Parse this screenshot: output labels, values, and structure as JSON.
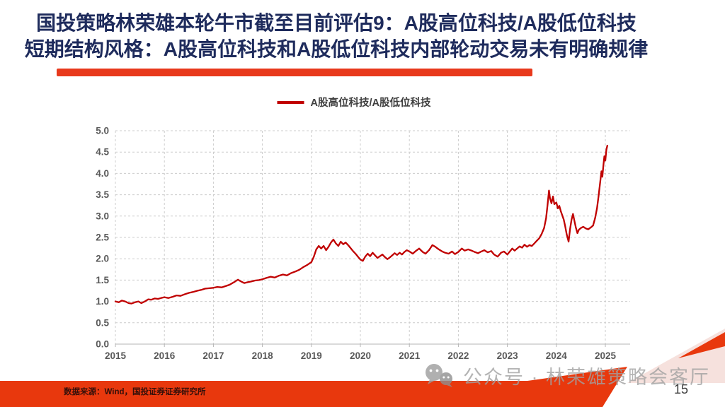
{
  "header": {
    "title_line1": "国投策略林荣雄本轮牛市截至目前评估9：A股高位科技/A股低位科技",
    "title_line2": "短期结构风格：A股高位科技和A股低位科技内部轮动交易未有明确规律",
    "title_color": "#1e2b5c",
    "underline_color": "#e8391c"
  },
  "footer": {
    "source": "数据来源：Wind，国投证券证券研究所",
    "watermark": "公众号 · 林荣雄策略会客厅",
    "wechat_icon": "wechat-icon",
    "page_number": "15",
    "band_color": "#e8380d",
    "shadow_color": "#f6e1dd"
  },
  "chart_data": {
    "type": "line",
    "title": "",
    "xlabel": "",
    "ylabel": "",
    "xlim": [
      2015,
      2025.5
    ],
    "ylim": [
      0,
      5
    ],
    "x_ticks": [
      2015,
      2016,
      2017,
      2018,
      2019,
      2020,
      2021,
      2022,
      2023,
      2024,
      2025
    ],
    "y_ticks": [
      0,
      0.5,
      1,
      1.5,
      2,
      2.5,
      3,
      3.5,
      4,
      4.5,
      5
    ],
    "grid": "dashed",
    "legend_position": "top-center",
    "series": [
      {
        "name": "A股高位科技/A股低位科技",
        "color": "#c00000",
        "points": [
          [
            2015.0,
            1.0
          ],
          [
            2015.07,
            0.98
          ],
          [
            2015.13,
            1.02
          ],
          [
            2015.2,
            1.0
          ],
          [
            2015.27,
            0.96
          ],
          [
            2015.33,
            0.95
          ],
          [
            2015.4,
            0.98
          ],
          [
            2015.47,
            1.0
          ],
          [
            2015.53,
            0.96
          ],
          [
            2015.6,
            1.0
          ],
          [
            2015.67,
            1.05
          ],
          [
            2015.73,
            1.04
          ],
          [
            2015.8,
            1.07
          ],
          [
            2015.87,
            1.06
          ],
          [
            2015.93,
            1.08
          ],
          [
            2016.0,
            1.1
          ],
          [
            2016.08,
            1.08
          ],
          [
            2016.17,
            1.11
          ],
          [
            2016.25,
            1.14
          ],
          [
            2016.33,
            1.13
          ],
          [
            2016.42,
            1.17
          ],
          [
            2016.5,
            1.2
          ],
          [
            2016.58,
            1.22
          ],
          [
            2016.67,
            1.25
          ],
          [
            2016.75,
            1.27
          ],
          [
            2016.83,
            1.3
          ],
          [
            2016.92,
            1.31
          ],
          [
            2017.0,
            1.32
          ],
          [
            2017.08,
            1.34
          ],
          [
            2017.17,
            1.33
          ],
          [
            2017.25,
            1.36
          ],
          [
            2017.33,
            1.39
          ],
          [
            2017.42,
            1.45
          ],
          [
            2017.5,
            1.51
          ],
          [
            2017.56,
            1.47
          ],
          [
            2017.63,
            1.43
          ],
          [
            2017.7,
            1.45
          ],
          [
            2017.78,
            1.47
          ],
          [
            2017.85,
            1.49
          ],
          [
            2017.93,
            1.5
          ],
          [
            2018.0,
            1.52
          ],
          [
            2018.08,
            1.55
          ],
          [
            2018.17,
            1.58
          ],
          [
            2018.25,
            1.56
          ],
          [
            2018.33,
            1.6
          ],
          [
            2018.42,
            1.63
          ],
          [
            2018.5,
            1.61
          ],
          [
            2018.58,
            1.66
          ],
          [
            2018.67,
            1.7
          ],
          [
            2018.75,
            1.74
          ],
          [
            2018.83,
            1.8
          ],
          [
            2018.92,
            1.86
          ],
          [
            2019.0,
            1.92
          ],
          [
            2019.05,
            2.05
          ],
          [
            2019.1,
            2.22
          ],
          [
            2019.15,
            2.3
          ],
          [
            2019.2,
            2.24
          ],
          [
            2019.25,
            2.3
          ],
          [
            2019.3,
            2.2
          ],
          [
            2019.35,
            2.28
          ],
          [
            2019.4,
            2.38
          ],
          [
            2019.45,
            2.45
          ],
          [
            2019.5,
            2.36
          ],
          [
            2019.55,
            2.3
          ],
          [
            2019.6,
            2.4
          ],
          [
            2019.65,
            2.34
          ],
          [
            2019.7,
            2.38
          ],
          [
            2019.75,
            2.32
          ],
          [
            2019.8,
            2.25
          ],
          [
            2019.85,
            2.18
          ],
          [
            2019.9,
            2.12
          ],
          [
            2019.95,
            2.05
          ],
          [
            2020.0,
            1.98
          ],
          [
            2020.05,
            1.95
          ],
          [
            2020.1,
            2.05
          ],
          [
            2020.15,
            2.12
          ],
          [
            2020.2,
            2.06
          ],
          [
            2020.25,
            2.14
          ],
          [
            2020.3,
            2.08
          ],
          [
            2020.35,
            2.02
          ],
          [
            2020.4,
            2.06
          ],
          [
            2020.45,
            2.1
          ],
          [
            2020.5,
            2.04
          ],
          [
            2020.55,
            1.99
          ],
          [
            2020.6,
            2.03
          ],
          [
            2020.65,
            2.08
          ],
          [
            2020.7,
            2.13
          ],
          [
            2020.75,
            2.09
          ],
          [
            2020.8,
            2.14
          ],
          [
            2020.85,
            2.1
          ],
          [
            2020.9,
            2.16
          ],
          [
            2020.95,
            2.2
          ],
          [
            2021.0,
            2.17
          ],
          [
            2021.07,
            2.12
          ],
          [
            2021.13,
            2.18
          ],
          [
            2021.2,
            2.24
          ],
          [
            2021.27,
            2.16
          ],
          [
            2021.33,
            2.12
          ],
          [
            2021.4,
            2.2
          ],
          [
            2021.47,
            2.32
          ],
          [
            2021.53,
            2.28
          ],
          [
            2021.6,
            2.22
          ],
          [
            2021.67,
            2.17
          ],
          [
            2021.73,
            2.14
          ],
          [
            2021.8,
            2.12
          ],
          [
            2021.87,
            2.17
          ],
          [
            2021.93,
            2.11
          ],
          [
            2022.0,
            2.16
          ],
          [
            2022.07,
            2.24
          ],
          [
            2022.13,
            2.19
          ],
          [
            2022.2,
            2.22
          ],
          [
            2022.27,
            2.19
          ],
          [
            2022.33,
            2.16
          ],
          [
            2022.4,
            2.13
          ],
          [
            2022.47,
            2.17
          ],
          [
            2022.53,
            2.2
          ],
          [
            2022.6,
            2.15
          ],
          [
            2022.67,
            2.18
          ],
          [
            2022.73,
            2.1
          ],
          [
            2022.8,
            2.05
          ],
          [
            2022.87,
            2.14
          ],
          [
            2022.93,
            2.17
          ],
          [
            2023.0,
            2.1
          ],
          [
            2023.05,
            2.17
          ],
          [
            2023.1,
            2.24
          ],
          [
            2023.15,
            2.19
          ],
          [
            2023.2,
            2.24
          ],
          [
            2023.25,
            2.29
          ],
          [
            2023.3,
            2.26
          ],
          [
            2023.35,
            2.33
          ],
          [
            2023.4,
            2.28
          ],
          [
            2023.45,
            2.32
          ],
          [
            2023.5,
            2.3
          ],
          [
            2023.55,
            2.36
          ],
          [
            2023.6,
            2.42
          ],
          [
            2023.65,
            2.48
          ],
          [
            2023.7,
            2.58
          ],
          [
            2023.75,
            2.72
          ],
          [
            2023.79,
            2.95
          ],
          [
            2023.82,
            3.25
          ],
          [
            2023.85,
            3.6
          ],
          [
            2023.87,
            3.42
          ],
          [
            2023.9,
            3.3
          ],
          [
            2023.93,
            3.46
          ],
          [
            2023.96,
            3.28
          ],
          [
            2024.0,
            3.32
          ],
          [
            2024.03,
            3.18
          ],
          [
            2024.06,
            3.24
          ],
          [
            2024.09,
            3.12
          ],
          [
            2024.12,
            3.02
          ],
          [
            2024.15,
            2.92
          ],
          [
            2024.18,
            2.76
          ],
          [
            2024.21,
            2.58
          ],
          [
            2024.25,
            2.4
          ],
          [
            2024.28,
            2.7
          ],
          [
            2024.31,
            2.92
          ],
          [
            2024.34,
            3.05
          ],
          [
            2024.37,
            2.88
          ],
          [
            2024.4,
            2.72
          ],
          [
            2024.43,
            2.6
          ],
          [
            2024.46,
            2.68
          ],
          [
            2024.5,
            2.72
          ],
          [
            2024.55,
            2.75
          ],
          [
            2024.6,
            2.71
          ],
          [
            2024.65,
            2.69
          ],
          [
            2024.7,
            2.73
          ],
          [
            2024.75,
            2.78
          ],
          [
            2024.79,
            2.95
          ],
          [
            2024.83,
            3.18
          ],
          [
            2024.86,
            3.45
          ],
          [
            2024.89,
            3.75
          ],
          [
            2024.92,
            4.05
          ],
          [
            2024.94,
            3.92
          ],
          [
            2024.96,
            4.18
          ],
          [
            2024.98,
            4.4
          ],
          [
            2025.0,
            4.3
          ],
          [
            2025.02,
            4.55
          ],
          [
            2025.04,
            4.65
          ]
        ]
      }
    ]
  }
}
